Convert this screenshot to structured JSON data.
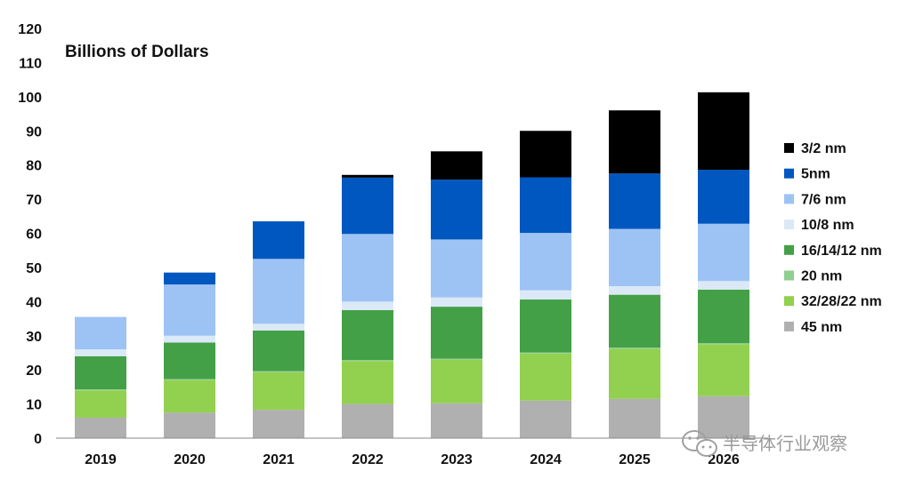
{
  "chart_data": {
    "type": "bar",
    "stacked": true,
    "title": "Billions of Dollars",
    "xlabel": "",
    "ylabel": "",
    "ylim": [
      0,
      120
    ],
    "yticks": [
      0,
      10,
      20,
      30,
      40,
      50,
      60,
      70,
      80,
      90,
      100,
      110,
      120
    ],
    "grid": false,
    "legend_position": "right",
    "categories": [
      "2019",
      "2020",
      "2021",
      "2022",
      "2023",
      "2024",
      "2025",
      "2026"
    ],
    "series": [
      {
        "name": "45 nm",
        "color": "#b0b0b0",
        "values": [
          6,
          7.5,
          8.3,
          10,
          10.2,
          11,
          11.5,
          12.3
        ]
      },
      {
        "name": "32/28/22 nm",
        "color": "#92d050",
        "values": [
          8,
          9.5,
          11,
          12.6,
          12.8,
          13.8,
          14.7,
          15.2
        ]
      },
      {
        "name": "20 nm",
        "color": "#8fcf8f",
        "values": [
          0.3,
          0.3,
          0.3,
          0.3,
          0.3,
          0.3,
          0.3,
          0.3
        ]
      },
      {
        "name": "16/14/12 nm",
        "color": "#43a047",
        "values": [
          9.7,
          10.7,
          11.9,
          14.6,
          15.2,
          15.5,
          15.5,
          15.7
        ]
      },
      {
        "name": "10/8 nm",
        "color": "#dbe9f6",
        "values": [
          2,
          2,
          2,
          2.5,
          2.7,
          2.7,
          2.5,
          2.5
        ]
      },
      {
        "name": "7/6 nm",
        "color": "#9dc3f5",
        "values": [
          9.5,
          15,
          19,
          19.8,
          17,
          16.8,
          16.8,
          16.8
        ]
      },
      {
        "name": "5nm",
        "color": "#0057bf",
        "values": [
          0,
          3.5,
          11,
          16.5,
          17.5,
          16.3,
          16.2,
          15.8
        ]
      },
      {
        "name": "3/2 nm",
        "color": "#000000",
        "values": [
          0,
          0,
          0,
          0.8,
          8.3,
          13.6,
          18.5,
          22.7
        ]
      }
    ]
  },
  "watermark": {
    "text": "半导体行业观察",
    "icon": "wechat-icon"
  }
}
